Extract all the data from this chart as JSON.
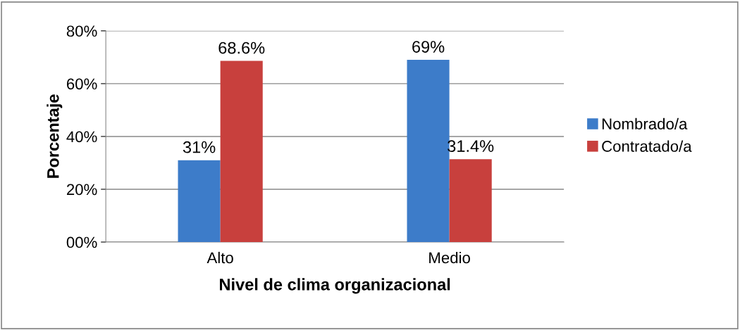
{
  "chart_data": {
    "type": "bar",
    "xlabel": "Nivel de clima organizacional",
    "ylabel": "Porcentaje",
    "categories": [
      "Alto",
      "Medio"
    ],
    "series": [
      {
        "name": "Nombrado/a",
        "color": "#3d7cc9",
        "values": [
          31,
          69
        ],
        "value_labels": [
          "31%",
          "69%"
        ]
      },
      {
        "name": "Contratado/a",
        "color": "#c8403d",
        "values": [
          68.6,
          31.4
        ],
        "value_labels": [
          "68.6%",
          "31.4%"
        ]
      }
    ],
    "ylim": [
      0,
      80
    ],
    "yticks": [
      {
        "value": 0,
        "label": "00%"
      },
      {
        "value": 20,
        "label": "20%"
      },
      {
        "value": 40,
        "label": "40%"
      },
      {
        "value": 60,
        "label": "60%"
      },
      {
        "value": 80,
        "label": "80%"
      }
    ],
    "grid": "y",
    "legend": "right"
  }
}
